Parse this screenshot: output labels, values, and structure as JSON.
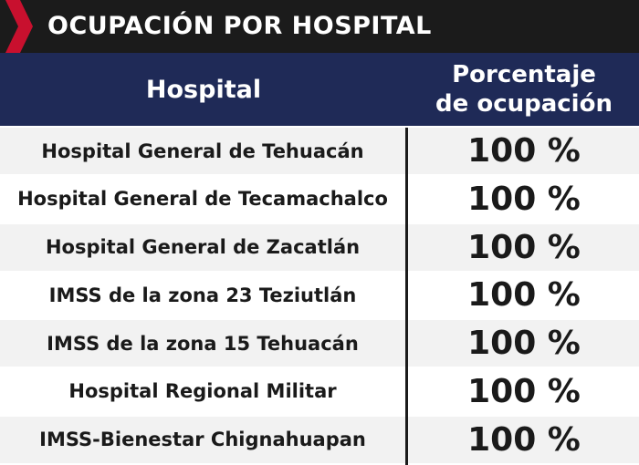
{
  "title": "OCUPACIÓN POR HOSPITAL",
  "colors": {
    "title_bar": "#1b1b1b",
    "accent": "#c8102e",
    "header": "#1f2a57",
    "row_alt": "#f2f2f2"
  },
  "icons": {
    "title_marker": "chevron-right-icon"
  },
  "header": {
    "hospital": "Hospital",
    "occupancy_line1": "Porcentaje",
    "occupancy_line2": "de ocupación"
  },
  "rows": [
    {
      "hospital": "Hospital General de Tehuacán",
      "occupancy": "100 %"
    },
    {
      "hospital": "Hospital General de Tecamachalco",
      "occupancy": "100 %"
    },
    {
      "hospital": "Hospital General de Zacatlán",
      "occupancy": "100 %"
    },
    {
      "hospital": "IMSS de la zona 23 Teziutlán",
      "occupancy": "100 %"
    },
    {
      "hospital": "IMSS de la zona 15 Tehuacán",
      "occupancy": "100 %"
    },
    {
      "hospital": "Hospital Regional Militar",
      "occupancy": "100 %"
    },
    {
      "hospital": "IMSS-Bienestar Chignahuapan",
      "occupancy": "100 %"
    }
  ]
}
